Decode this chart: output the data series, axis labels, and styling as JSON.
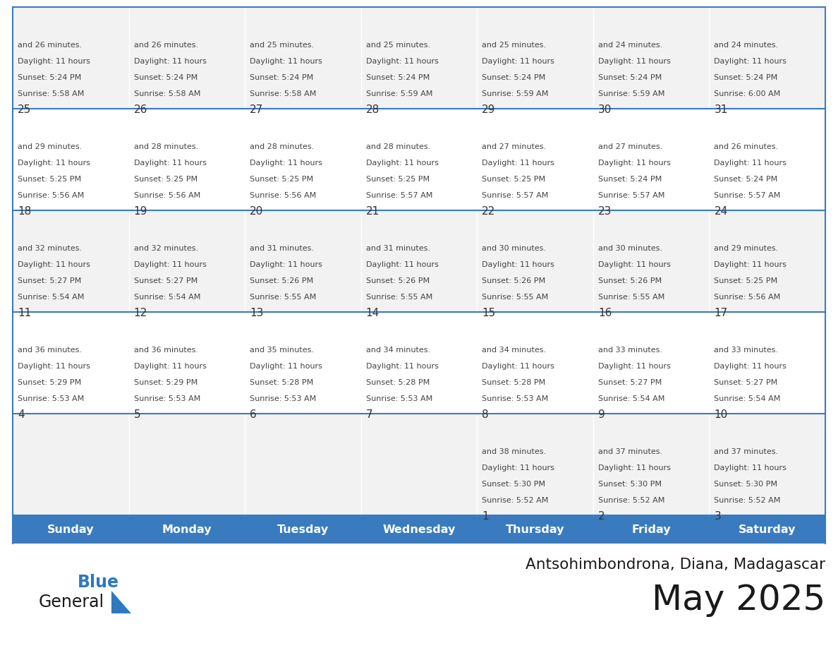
{
  "title": "May 2025",
  "subtitle": "Antsohimbondrona, Diana, Madagascar",
  "days_of_week": [
    "Sunday",
    "Monday",
    "Tuesday",
    "Wednesday",
    "Thursday",
    "Friday",
    "Saturday"
  ],
  "header_bg": "#3A7BBF",
  "header_text": "#FFFFFF",
  "cell_bg_light": "#F2F2F2",
  "cell_bg_white": "#FFFFFF",
  "cell_border": "#3A7BBF",
  "day_number_color": "#333333",
  "cell_text_color": "#444444",
  "title_color": "#1a1a1a",
  "subtitle_color": "#1a1a1a",
  "logo_general_color": "#1a1a1a",
  "logo_blue_color": "#2E79C0",
  "weeks": [
    [
      {
        "day": null,
        "info": ""
      },
      {
        "day": null,
        "info": ""
      },
      {
        "day": null,
        "info": ""
      },
      {
        "day": null,
        "info": ""
      },
      {
        "day": 1,
        "info": "Sunrise: 5:52 AM\nSunset: 5:30 PM\nDaylight: 11 hours\nand 38 minutes."
      },
      {
        "day": 2,
        "info": "Sunrise: 5:52 AM\nSunset: 5:30 PM\nDaylight: 11 hours\nand 37 minutes."
      },
      {
        "day": 3,
        "info": "Sunrise: 5:52 AM\nSunset: 5:30 PM\nDaylight: 11 hours\nand 37 minutes."
      }
    ],
    [
      {
        "day": 4,
        "info": "Sunrise: 5:53 AM\nSunset: 5:29 PM\nDaylight: 11 hours\nand 36 minutes."
      },
      {
        "day": 5,
        "info": "Sunrise: 5:53 AM\nSunset: 5:29 PM\nDaylight: 11 hours\nand 36 minutes."
      },
      {
        "day": 6,
        "info": "Sunrise: 5:53 AM\nSunset: 5:28 PM\nDaylight: 11 hours\nand 35 minutes."
      },
      {
        "day": 7,
        "info": "Sunrise: 5:53 AM\nSunset: 5:28 PM\nDaylight: 11 hours\nand 34 minutes."
      },
      {
        "day": 8,
        "info": "Sunrise: 5:53 AM\nSunset: 5:28 PM\nDaylight: 11 hours\nand 34 minutes."
      },
      {
        "day": 9,
        "info": "Sunrise: 5:54 AM\nSunset: 5:27 PM\nDaylight: 11 hours\nand 33 minutes."
      },
      {
        "day": 10,
        "info": "Sunrise: 5:54 AM\nSunset: 5:27 PM\nDaylight: 11 hours\nand 33 minutes."
      }
    ],
    [
      {
        "day": 11,
        "info": "Sunrise: 5:54 AM\nSunset: 5:27 PM\nDaylight: 11 hours\nand 32 minutes."
      },
      {
        "day": 12,
        "info": "Sunrise: 5:54 AM\nSunset: 5:27 PM\nDaylight: 11 hours\nand 32 minutes."
      },
      {
        "day": 13,
        "info": "Sunrise: 5:55 AM\nSunset: 5:26 PM\nDaylight: 11 hours\nand 31 minutes."
      },
      {
        "day": 14,
        "info": "Sunrise: 5:55 AM\nSunset: 5:26 PM\nDaylight: 11 hours\nand 31 minutes."
      },
      {
        "day": 15,
        "info": "Sunrise: 5:55 AM\nSunset: 5:26 PM\nDaylight: 11 hours\nand 30 minutes."
      },
      {
        "day": 16,
        "info": "Sunrise: 5:55 AM\nSunset: 5:26 PM\nDaylight: 11 hours\nand 30 minutes."
      },
      {
        "day": 17,
        "info": "Sunrise: 5:56 AM\nSunset: 5:25 PM\nDaylight: 11 hours\nand 29 minutes."
      }
    ],
    [
      {
        "day": 18,
        "info": "Sunrise: 5:56 AM\nSunset: 5:25 PM\nDaylight: 11 hours\nand 29 minutes."
      },
      {
        "day": 19,
        "info": "Sunrise: 5:56 AM\nSunset: 5:25 PM\nDaylight: 11 hours\nand 28 minutes."
      },
      {
        "day": 20,
        "info": "Sunrise: 5:56 AM\nSunset: 5:25 PM\nDaylight: 11 hours\nand 28 minutes."
      },
      {
        "day": 21,
        "info": "Sunrise: 5:57 AM\nSunset: 5:25 PM\nDaylight: 11 hours\nand 28 minutes."
      },
      {
        "day": 22,
        "info": "Sunrise: 5:57 AM\nSunset: 5:25 PM\nDaylight: 11 hours\nand 27 minutes."
      },
      {
        "day": 23,
        "info": "Sunrise: 5:57 AM\nSunset: 5:24 PM\nDaylight: 11 hours\nand 27 minutes."
      },
      {
        "day": 24,
        "info": "Sunrise: 5:57 AM\nSunset: 5:24 PM\nDaylight: 11 hours\nand 26 minutes."
      }
    ],
    [
      {
        "day": 25,
        "info": "Sunrise: 5:58 AM\nSunset: 5:24 PM\nDaylight: 11 hours\nand 26 minutes."
      },
      {
        "day": 26,
        "info": "Sunrise: 5:58 AM\nSunset: 5:24 PM\nDaylight: 11 hours\nand 26 minutes."
      },
      {
        "day": 27,
        "info": "Sunrise: 5:58 AM\nSunset: 5:24 PM\nDaylight: 11 hours\nand 25 minutes."
      },
      {
        "day": 28,
        "info": "Sunrise: 5:59 AM\nSunset: 5:24 PM\nDaylight: 11 hours\nand 25 minutes."
      },
      {
        "day": 29,
        "info": "Sunrise: 5:59 AM\nSunset: 5:24 PM\nDaylight: 11 hours\nand 25 minutes."
      },
      {
        "day": 30,
        "info": "Sunrise: 5:59 AM\nSunset: 5:24 PM\nDaylight: 11 hours\nand 24 minutes."
      },
      {
        "day": 31,
        "info": "Sunrise: 6:00 AM\nSunset: 5:24 PM\nDaylight: 11 hours\nand 24 minutes."
      }
    ]
  ]
}
